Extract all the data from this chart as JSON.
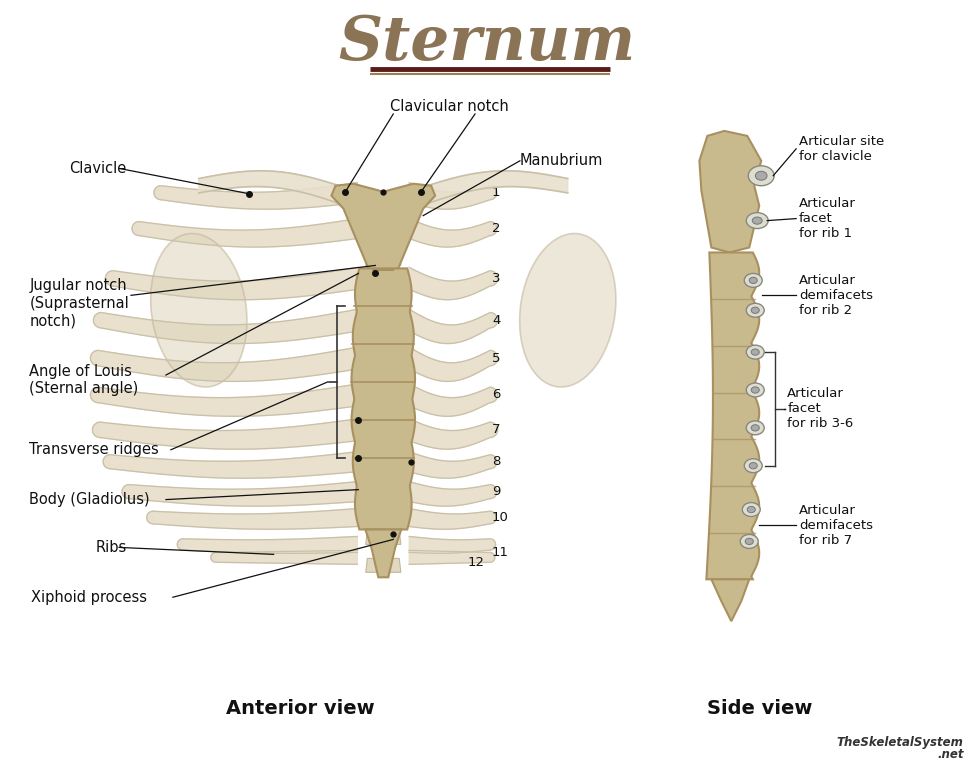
{
  "title": "Sternum",
  "title_color": "#8B7355",
  "title_underline_color1": "#5C1A1A",
  "bg_color": "#FFFFFF",
  "label_color": "#111111",
  "label_fontsize": 10.5,
  "title_fontsize": 44,
  "view_label_fontsize": 14,
  "anterior_view_label": "Anterior view",
  "side_view_label": "Side view",
  "watermark_line1": "TheSkeletalSystem",
  "watermark_line2": ".net",
  "bone_color": "#C8BA8C",
  "bone_edge_color": "#A89060",
  "rib_color": "#E8E0CC",
  "rib_edge_color": "#C8C0A8"
}
